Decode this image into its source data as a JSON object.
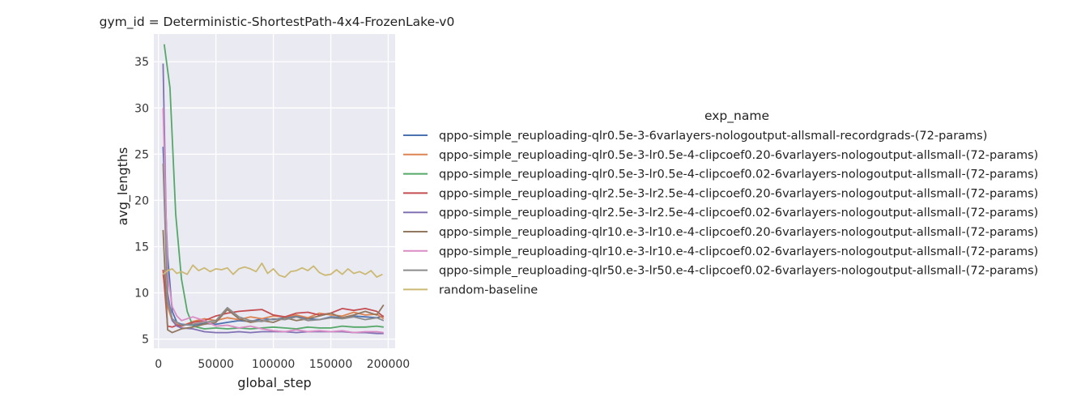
{
  "chart_data": {
    "type": "line",
    "title": "gym_id = Deterministic-ShortestPath-4x4-FrozenLake-v0",
    "xlabel": "global_step",
    "ylabel": "avg_lengths",
    "xlim": [
      -4000,
      206000
    ],
    "ylim": [
      4.0,
      38.0
    ],
    "xticks": [
      0,
      50000,
      100000,
      150000,
      200000
    ],
    "xtick_labels": [
      "0",
      "50000",
      "100000",
      "150000",
      "200000"
    ],
    "yticks": [
      5,
      10,
      15,
      20,
      25,
      30,
      35
    ],
    "ytick_labels": [
      "5",
      "10",
      "15",
      "20",
      "25",
      "30",
      "35"
    ],
    "grid": true,
    "background": "#eaeaf2",
    "legend": {
      "title": "exp_name",
      "placement": "right"
    },
    "series": [
      {
        "name": "qppo-simple_reuploading-qlr0.5e-3-6varlayers-nologoutput-allsmall-recordgrads-(72-params)",
        "color": "#4c72b0",
        "x": [
          4000,
          8000,
          12000,
          16000,
          20000,
          30000,
          40000,
          50000,
          60000,
          70000,
          80000,
          90000,
          100000,
          110000,
          120000,
          130000,
          140000,
          150000,
          160000,
          170000,
          180000,
          190000,
          196000
        ],
        "y": [
          25.8,
          14.0,
          8.0,
          6.8,
          6.6,
          6.5,
          6.7,
          6.6,
          6.8,
          7.0,
          6.9,
          7.2,
          7.1,
          7.3,
          7.5,
          7.2,
          7.1,
          7.4,
          7.3,
          7.5,
          7.4,
          7.3,
          7.5
        ]
      },
      {
        "name": "qppo-simple_reuploading-qlr0.5e-3-lr0.5e-4-clipcoef0.20-6varlayers-nologoutput-allsmall-(72-params)",
        "color": "#dd8452",
        "x": [
          4000,
          8000,
          12000,
          16000,
          20000,
          30000,
          40000,
          50000,
          60000,
          70000,
          80000,
          90000,
          100000,
          110000,
          120000,
          130000,
          140000,
          150000,
          160000,
          170000,
          180000,
          190000,
          196000
        ],
        "y": [
          12.0,
          8.5,
          7.0,
          6.6,
          6.4,
          6.9,
          7.2,
          7.0,
          7.3,
          7.1,
          7.4,
          7.2,
          7.5,
          7.4,
          7.6,
          7.3,
          7.8,
          7.6,
          7.5,
          7.9,
          7.6,
          7.7,
          7.2
        ]
      },
      {
        "name": "qppo-simple_reuploading-qlr0.5e-3-lr0.5e-4-clipcoef0.02-6varlayers-nologoutput-allsmall-(72-params)",
        "color": "#55a868",
        "x": [
          5000,
          10000,
          15000,
          20000,
          25000,
          30000,
          40000,
          50000,
          60000,
          70000,
          80000,
          90000,
          100000,
          110000,
          120000,
          130000,
          140000,
          150000,
          160000,
          170000,
          180000,
          190000,
          196000
        ],
        "y": [
          36.9,
          32.2,
          18.5,
          11.5,
          8.0,
          6.4,
          6.1,
          6.2,
          6.1,
          6.2,
          6.1,
          6.2,
          6.3,
          6.2,
          6.1,
          6.3,
          6.2,
          6.2,
          6.4,
          6.3,
          6.3,
          6.4,
          6.3
        ]
      },
      {
        "name": "qppo-simple_reuploading-qlr2.5e-3-lr2.5e-4-clipcoef0.20-6varlayers-nologoutput-allsmall-(72-params)",
        "color": "#c44e52",
        "x": [
          4000,
          8000,
          12000,
          16000,
          20000,
          30000,
          40000,
          50000,
          60000,
          70000,
          80000,
          90000,
          100000,
          110000,
          120000,
          130000,
          140000,
          150000,
          160000,
          170000,
          180000,
          190000,
          196000
        ],
        "y": [
          12.5,
          6.4,
          6.3,
          6.5,
          6.4,
          6.8,
          7.0,
          7.5,
          7.8,
          8.0,
          8.1,
          8.2,
          7.6,
          7.4,
          7.8,
          7.9,
          7.6,
          7.8,
          8.3,
          8.1,
          8.3,
          8.0,
          7.4
        ]
      },
      {
        "name": "qppo-simple_reuploading-qlr2.5e-3-lr2.5e-4-clipcoef0.02-6varlayers-nologoutput-allsmall-(72-params)",
        "color": "#8172b3",
        "x": [
          4000,
          8000,
          12000,
          16000,
          20000,
          30000,
          40000,
          50000,
          60000,
          70000,
          80000,
          90000,
          100000,
          110000,
          120000,
          130000,
          140000,
          150000,
          160000,
          170000,
          180000,
          190000,
          196000
        ],
        "y": [
          34.8,
          10.0,
          7.0,
          6.4,
          6.2,
          6.1,
          5.8,
          5.7,
          5.7,
          5.8,
          5.7,
          5.8,
          5.8,
          5.8,
          5.7,
          5.8,
          5.8,
          5.8,
          5.8,
          5.7,
          5.7,
          5.6,
          5.6
        ]
      },
      {
        "name": "qppo-simple_reuploading-qlr10.e-3-lr10.e-4-clipcoef0.20-6varlayers-nologoutput-allsmall-(72-params)",
        "color": "#937860",
        "x": [
          4000,
          8000,
          12000,
          16000,
          20000,
          30000,
          40000,
          50000,
          60000,
          70000,
          80000,
          90000,
          100000,
          110000,
          120000,
          130000,
          140000,
          150000,
          160000,
          170000,
          180000,
          190000,
          196000
        ],
        "y": [
          16.8,
          6.0,
          5.7,
          5.9,
          6.1,
          6.3,
          6.6,
          6.8,
          8.2,
          7.2,
          6.8,
          7.0,
          6.8,
          7.3,
          7.0,
          7.2,
          7.5,
          7.8,
          7.3,
          7.6,
          8.0,
          7.6,
          8.7
        ]
      },
      {
        "name": "qppo-simple_reuploading-qlr10.e-3-lr10.e-4-clipcoef0.02-6varlayers-nologoutput-allsmall-(72-params)",
        "color": "#da8bc3",
        "x": [
          4000,
          8000,
          12000,
          16000,
          20000,
          30000,
          40000,
          50000,
          60000,
          70000,
          80000,
          90000,
          100000,
          110000,
          120000,
          130000,
          140000,
          150000,
          160000,
          170000,
          180000,
          190000,
          196000
        ],
        "y": [
          30.0,
          12.0,
          8.5,
          7.5,
          7.0,
          7.4,
          7.0,
          6.4,
          6.5,
          6.2,
          6.4,
          6.1,
          5.9,
          5.8,
          6.0,
          5.8,
          5.9,
          5.8,
          5.9,
          5.7,
          5.8,
          5.8,
          5.7
        ]
      },
      {
        "name": "qppo-simple_reuploading-qlr50.e-3-lr50.e-4-clipcoef0.02-6varlayers-nologoutput-allsmall-(72-params)",
        "color": "#8c8c8c",
        "x": [
          4000,
          8000,
          12000,
          16000,
          20000,
          30000,
          40000,
          50000,
          60000,
          70000,
          80000,
          90000,
          100000,
          110000,
          120000,
          130000,
          140000,
          150000,
          160000,
          170000,
          180000,
          190000,
          196000
        ],
        "y": [
          24.0,
          9.0,
          7.2,
          6.8,
          6.5,
          6.6,
          6.8,
          7.0,
          8.4,
          7.4,
          7.0,
          6.9,
          7.2,
          7.1,
          7.4,
          7.0,
          7.1,
          7.3,
          7.2,
          7.4,
          7.1,
          7.3,
          7.0
        ]
      },
      {
        "name": "random-baseline",
        "color": "#ccb974",
        "x": [
          4000,
          8000,
          12000,
          16000,
          20000,
          25000,
          30000,
          35000,
          40000,
          45000,
          50000,
          55000,
          60000,
          65000,
          70000,
          75000,
          80000,
          85000,
          90000,
          95000,
          100000,
          105000,
          110000,
          115000,
          120000,
          125000,
          130000,
          135000,
          140000,
          145000,
          150000,
          155000,
          160000,
          165000,
          170000,
          175000,
          180000,
          185000,
          190000,
          195000
        ],
        "y": [
          12.0,
          12.4,
          12.6,
          12.1,
          12.3,
          12.0,
          13.0,
          12.4,
          12.7,
          12.3,
          12.6,
          12.5,
          12.7,
          12.0,
          12.6,
          12.8,
          12.6,
          12.3,
          13.2,
          12.1,
          12.6,
          11.9,
          11.7,
          12.3,
          12.4,
          12.7,
          12.4,
          12.9,
          12.2,
          11.9,
          12.0,
          12.5,
          12.0,
          12.6,
          12.1,
          12.3,
          12.0,
          12.4,
          11.7,
          12.0
        ]
      }
    ]
  }
}
